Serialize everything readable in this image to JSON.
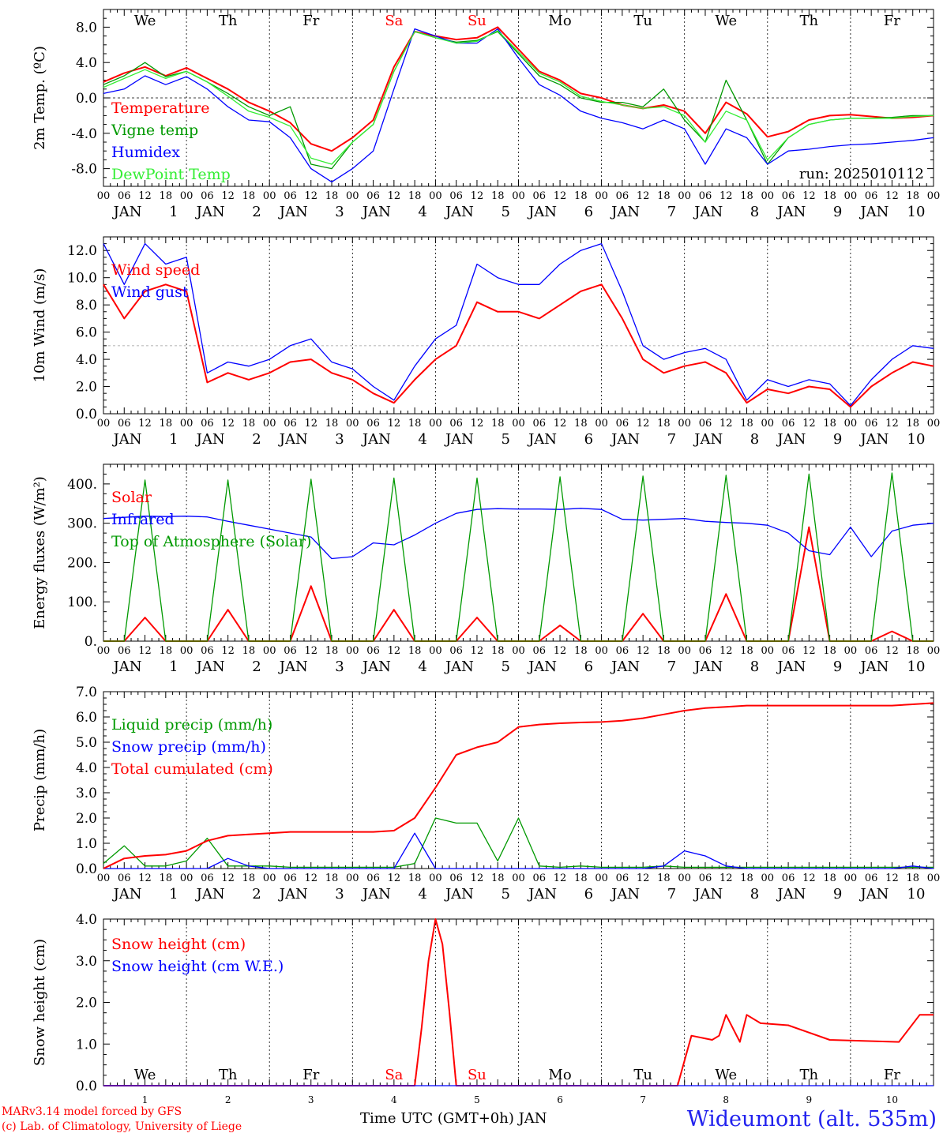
{
  "meta": {
    "model_credit": "MARv3.14 model forced by GFS",
    "lab_credit": "(c) Lab. of Climatology, University of Liege",
    "station": "Wideumont (alt. 535m)",
    "xaxis_title": "Time UTC (GMT+0h) JAN",
    "run_label": "run: 2025010112"
  },
  "time_axis": {
    "days": 10,
    "hour_ticks": [
      "00",
      "06",
      "12",
      "18"
    ],
    "end_tick": "00",
    "month": "JAN",
    "day_numbers": [
      "1",
      "2",
      "3",
      "4",
      "5",
      "6",
      "7",
      "8",
      "9",
      "10"
    ],
    "weekdays": [
      "We",
      "Th",
      "Fr",
      "Sa",
      "Su",
      "Mo",
      "Tu",
      "We",
      "Th",
      "Fr"
    ],
    "weekend_color": "#ff0000",
    "weekday_color": "#000000"
  },
  "colors": {
    "red": "#ff0000",
    "green": "#009900",
    "blue": "#0000ff",
    "lightgreen": "#33ee33",
    "grid": "#000000"
  },
  "chart_data": [
    {
      "type": "line",
      "ylabel": "2m Temp. (ºC)",
      "ylim": [
        -10,
        10
      ],
      "yticks": [
        -8,
        -4,
        0,
        4,
        8
      ],
      "ytick_labels": [
        "-8.0",
        "-4.0",
        "0.0",
        "4.0",
        "8.0"
      ],
      "ref_line": 0,
      "show_weekdays": true,
      "x": [
        0,
        6,
        12,
        18,
        24,
        30,
        36,
        42,
        48,
        54,
        60,
        66,
        72,
        78,
        84,
        90,
        96,
        102,
        108,
        114,
        120,
        126,
        132,
        138,
        144,
        150,
        156,
        162,
        168,
        174,
        180,
        186,
        192,
        198,
        204,
        210,
        216,
        222,
        228,
        234,
        240
      ],
      "series": [
        {
          "name": "Temperature",
          "color": "red",
          "values": [
            1.8,
            2.8,
            3.5,
            2.5,
            3.4,
            2.2,
            1.0,
            -0.5,
            -1.5,
            -2.8,
            -5.2,
            -6.0,
            -4.5,
            -2.5,
            3.5,
            7.5,
            7.0,
            6.6,
            6.8,
            8.0,
            5.5,
            3.0,
            2.0,
            0.5,
            0.0,
            -0.8,
            -1.2,
            -0.8,
            -1.5,
            -4.0,
            -0.5,
            -1.8,
            -4.4,
            -3.8,
            -2.5,
            -2.0,
            -1.9,
            -2.1,
            -2.3,
            -2.2,
            -2.0
          ]
        },
        {
          "name": "Vigne temp",
          "color": "green",
          "values": [
            1.5,
            2.5,
            4.0,
            2.4,
            3.0,
            1.8,
            0.5,
            -1.0,
            -2.0,
            -1.0,
            -7.5,
            -8.0,
            -5.0,
            -3.0,
            3.0,
            7.5,
            6.8,
            6.3,
            6.5,
            7.5,
            5.0,
            2.5,
            1.5,
            0.0,
            -0.5,
            -0.5,
            -1.0,
            1.0,
            -2.5,
            -5.0,
            2.0,
            -2.5,
            -7.5,
            -4.5,
            -3.0,
            -2.5,
            -2.3,
            -2.3,
            -2.2,
            -2.0,
            -2.0
          ]
        },
        {
          "name": "Humidex",
          "color": "blue",
          "values": [
            0.5,
            1.0,
            2.5,
            1.5,
            2.4,
            1.0,
            -1.0,
            -2.5,
            -2.7,
            -4.5,
            -8.0,
            -9.5,
            -8.0,
            -6.0,
            1.0,
            7.8,
            7.0,
            6.2,
            6.2,
            7.8,
            4.5,
            1.5,
            0.3,
            -1.5,
            -2.3,
            -2.8,
            -3.5,
            -2.5,
            -3.5,
            -7.5,
            -3.5,
            -4.5,
            -7.5,
            -6.0,
            -5.8,
            -5.5,
            -5.3,
            -5.2,
            -5.0,
            -4.8,
            -4.5
          ]
        },
        {
          "name": "DewPoint Temp",
          "color": "lightgreen",
          "values": [
            1.2,
            2.2,
            3.2,
            2.2,
            3.0,
            1.8,
            0.2,
            -1.5,
            -2.2,
            -3.2,
            -6.8,
            -7.5,
            -5.0,
            -3.0,
            3.0,
            7.5,
            6.8,
            6.2,
            6.4,
            7.6,
            5.2,
            2.8,
            1.8,
            0.2,
            -0.4,
            -0.8,
            -1.2,
            -1.0,
            -2.0,
            -5.0,
            -1.5,
            -2.5,
            -7.0,
            -4.5,
            -3.0,
            -2.5,
            -2.3,
            -2.3,
            -2.3,
            -2.1,
            -2.0
          ]
        }
      ]
    },
    {
      "type": "line",
      "ylabel": "10m Wind (m/s)",
      "ylim": [
        0,
        13
      ],
      "yticks": [
        0,
        2,
        4,
        6,
        8,
        10,
        12
      ],
      "ytick_labels": [
        "0.0",
        "2.0",
        "4.0",
        "6.0",
        "8.0",
        "10.0",
        "12.0"
      ],
      "ref_line": 5,
      "x": [
        0,
        6,
        12,
        18,
        24,
        30,
        36,
        42,
        48,
        54,
        60,
        66,
        72,
        78,
        84,
        90,
        96,
        102,
        108,
        114,
        120,
        126,
        132,
        138,
        144,
        150,
        156,
        162,
        168,
        174,
        180,
        186,
        192,
        198,
        204,
        210,
        216,
        222,
        228,
        234,
        240
      ],
      "series": [
        {
          "name": "Wind speed",
          "color": "red",
          "values": [
            9.5,
            7.0,
            9.0,
            9.5,
            9.0,
            2.3,
            3.0,
            2.5,
            3.0,
            3.8,
            4.0,
            3.0,
            2.5,
            1.5,
            0.8,
            2.5,
            4.0,
            5.0,
            8.2,
            7.5,
            7.5,
            7.0,
            8.0,
            9.0,
            9.5,
            7.0,
            4.0,
            3.0,
            3.5,
            3.8,
            3.0,
            0.8,
            1.8,
            1.5,
            2.0,
            1.8,
            0.5,
            2.0,
            3.0,
            3.8,
            3.5
          ]
        },
        {
          "name": "Wind gust",
          "color": "blue",
          "values": [
            12.5,
            9.5,
            12.5,
            11.0,
            11.5,
            3.0,
            3.8,
            3.5,
            4.0,
            5.0,
            5.5,
            3.8,
            3.3,
            2.0,
            1.0,
            3.5,
            5.5,
            6.5,
            11.0,
            10.0,
            9.5,
            9.5,
            11.0,
            12.0,
            12.5,
            9.0,
            5.0,
            4.0,
            4.5,
            4.8,
            4.0,
            1.0,
            2.5,
            2.0,
            2.5,
            2.2,
            0.6,
            2.5,
            4.0,
            5.0,
            4.8
          ]
        }
      ]
    },
    {
      "type": "line",
      "ylabel": "Energy fluxes (W/m²)",
      "ylim": [
        0,
        450
      ],
      "yticks": [
        0,
        100,
        200,
        300,
        400
      ],
      "ytick_labels": [
        "0.",
        "100.",
        "200.",
        "300.",
        "400."
      ],
      "x": [
        0,
        6,
        12,
        18,
        24,
        30,
        36,
        42,
        48,
        54,
        60,
        66,
        72,
        78,
        84,
        90,
        96,
        102,
        108,
        114,
        120,
        126,
        132,
        138,
        144,
        150,
        156,
        162,
        168,
        174,
        180,
        186,
        192,
        198,
        204,
        210,
        216,
        222,
        228,
        234,
        240
      ],
      "series": [
        {
          "name": "Solar",
          "color": "red",
          "values": [
            0,
            0,
            60,
            0,
            0,
            0,
            80,
            0,
            0,
            0,
            140,
            0,
            0,
            0,
            80,
            0,
            0,
            0,
            60,
            0,
            0,
            0,
            40,
            0,
            0,
            0,
            70,
            0,
            0,
            0,
            120,
            0,
            0,
            0,
            290,
            0,
            0,
            0,
            25,
            0,
            0
          ]
        },
        {
          "name": "Infrared",
          "color": "blue",
          "values": [
            312,
            315,
            318,
            317,
            318,
            316,
            305,
            295,
            285,
            275,
            265,
            210,
            215,
            250,
            245,
            270,
            300,
            325,
            335,
            337,
            336,
            336,
            335,
            338,
            335,
            310,
            308,
            310,
            312,
            305,
            302,
            300,
            295,
            275,
            230,
            220,
            290,
            215,
            280,
            295,
            300
          ]
        },
        {
          "name": "Top of Atmosphere (Solar)",
          "color": "green",
          "values": [
            0,
            0,
            410,
            0,
            0,
            0,
            410,
            0,
            0,
            0,
            412,
            0,
            0,
            0,
            415,
            0,
            0,
            0,
            415,
            0,
            0,
            0,
            418,
            0,
            0,
            0,
            420,
            0,
            0,
            0,
            422,
            0,
            0,
            0,
            425,
            0,
            0,
            0,
            428,
            0,
            0
          ]
        }
      ]
    },
    {
      "type": "line",
      "ylabel": "Precip (mm/h)",
      "ylim": [
        0,
        7
      ],
      "yticks": [
        0,
        1,
        2,
        3,
        4,
        5,
        6,
        7
      ],
      "ytick_labels": [
        "0.0",
        "1.0",
        "2.0",
        "3.0",
        "4.0",
        "5.0",
        "6.0",
        "7.0"
      ],
      "x": [
        0,
        6,
        12,
        18,
        24,
        30,
        36,
        42,
        48,
        54,
        60,
        66,
        72,
        78,
        84,
        90,
        96,
        102,
        108,
        114,
        120,
        126,
        132,
        138,
        144,
        150,
        156,
        162,
        168,
        174,
        180,
        186,
        192,
        198,
        204,
        210,
        216,
        222,
        228,
        234,
        240
      ],
      "series": [
        {
          "name": "Liquid precip (mm/h)",
          "color": "green",
          "values": [
            0.2,
            0.9,
            0.1,
            0.1,
            0.3,
            1.2,
            0.1,
            0.1,
            0.1,
            0.05,
            0.05,
            0.05,
            0.05,
            0.05,
            0.05,
            0.2,
            2.0,
            1.8,
            1.8,
            0.3,
            2.0,
            0.1,
            0.05,
            0.1,
            0.05,
            0.05,
            0.05,
            0.1,
            0.05,
            0.05,
            0.05,
            0.05,
            0.05,
            0.05,
            0.05,
            0.05,
            0.05,
            0.05,
            0.05,
            0.05,
            0.05
          ]
        },
        {
          "name": "Snow precip (mm/h)",
          "color": "blue",
          "values": [
            0,
            0,
            0,
            0,
            0,
            0,
            0.4,
            0.1,
            0,
            0,
            0,
            0,
            0,
            0,
            0,
            1.4,
            0,
            0,
            0,
            0,
            0,
            0,
            0,
            0,
            0,
            0,
            0,
            0.1,
            0.7,
            0.5,
            0.1,
            0,
            0,
            0,
            0,
            0,
            0,
            0,
            0,
            0.1,
            0
          ]
        },
        {
          "name": "Total cumulated (cm)",
          "color": "red",
          "values": [
            0,
            0.4,
            0.5,
            0.55,
            0.7,
            1.1,
            1.3,
            1.35,
            1.4,
            1.45,
            1.45,
            1.45,
            1.45,
            1.45,
            1.5,
            2.0,
            3.2,
            4.5,
            4.8,
            5.0,
            5.6,
            5.7,
            5.75,
            5.78,
            5.8,
            5.85,
            5.95,
            6.1,
            6.25,
            6.35,
            6.4,
            6.45,
            6.45,
            6.45,
            6.45,
            6.45,
            6.45,
            6.45,
            6.45,
            6.5,
            6.55
          ]
        }
      ]
    },
    {
      "type": "line",
      "ylabel": "Snow height (cm)",
      "ylim": [
        0,
        4
      ],
      "yticks": [
        0,
        1,
        2,
        3,
        4
      ],
      "ytick_labels": [
        "0.0",
        "1.0",
        "2.0",
        "3.0",
        "4.0"
      ],
      "bottom_panel": true,
      "x": [
        0,
        24,
        48,
        72,
        90,
        92,
        94,
        96,
        98,
        100,
        102,
        104,
        166,
        168,
        170,
        176,
        178,
        180,
        184,
        186,
        190,
        198,
        210,
        230,
        236,
        240
      ],
      "series": [
        {
          "name": "Snow height (cm)",
          "color": "red",
          "values": [
            0,
            0,
            0,
            0,
            0,
            1.4,
            3.0,
            4.0,
            3.4,
            1.8,
            0,
            0,
            0,
            0.6,
            1.2,
            1.1,
            1.2,
            1.7,
            1.05,
            1.7,
            1.5,
            1.45,
            1.1,
            1.05,
            1.7,
            1.7
          ]
        },
        {
          "name": "Snow height (cm W.E.)",
          "color": "blue",
          "values": [
            0,
            0,
            0,
            0,
            0,
            0,
            0,
            0,
            0,
            0,
            0,
            0,
            0,
            0,
            0,
            0,
            0,
            0,
            0,
            0,
            0,
            0,
            0,
            0,
            0,
            0
          ]
        }
      ]
    }
  ]
}
